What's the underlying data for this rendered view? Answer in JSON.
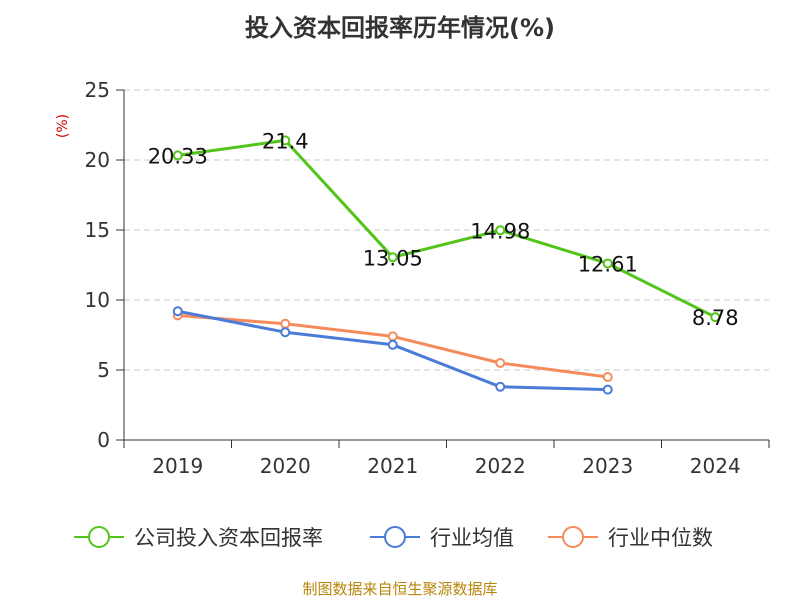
{
  "chart_data": {
    "type": "line",
    "title": "投入资本回报率历年情况(%)",
    "ylabel": "(%)",
    "categories": [
      "2019",
      "2020",
      "2021",
      "2022",
      "2023",
      "2024"
    ],
    "ylim": [
      0,
      25
    ],
    "yticks": [
      0,
      5,
      10,
      15,
      20,
      25
    ],
    "grid": true,
    "legend_position": "bottom",
    "series": [
      {
        "name": "公司投入资本回报率",
        "color": "#52c41a",
        "values": [
          20.33,
          21.4,
          13.05,
          14.98,
          12.61,
          8.78
        ],
        "labels": [
          "20.33",
          "21.4",
          "13.05",
          "14.98",
          "12.61",
          "8.78"
        ]
      },
      {
        "name": "行业均值",
        "color": "#4b7bd8",
        "values": [
          9.2,
          7.7,
          6.8,
          3.8,
          3.6,
          null
        ],
        "labels": null
      },
      {
        "name": "行业中位数",
        "color": "#f58b5b",
        "values": [
          8.9,
          8.3,
          7.4,
          5.5,
          4.5,
          null
        ],
        "labels": null
      }
    ]
  },
  "source": "制图数据来自恒生聚源数据库"
}
